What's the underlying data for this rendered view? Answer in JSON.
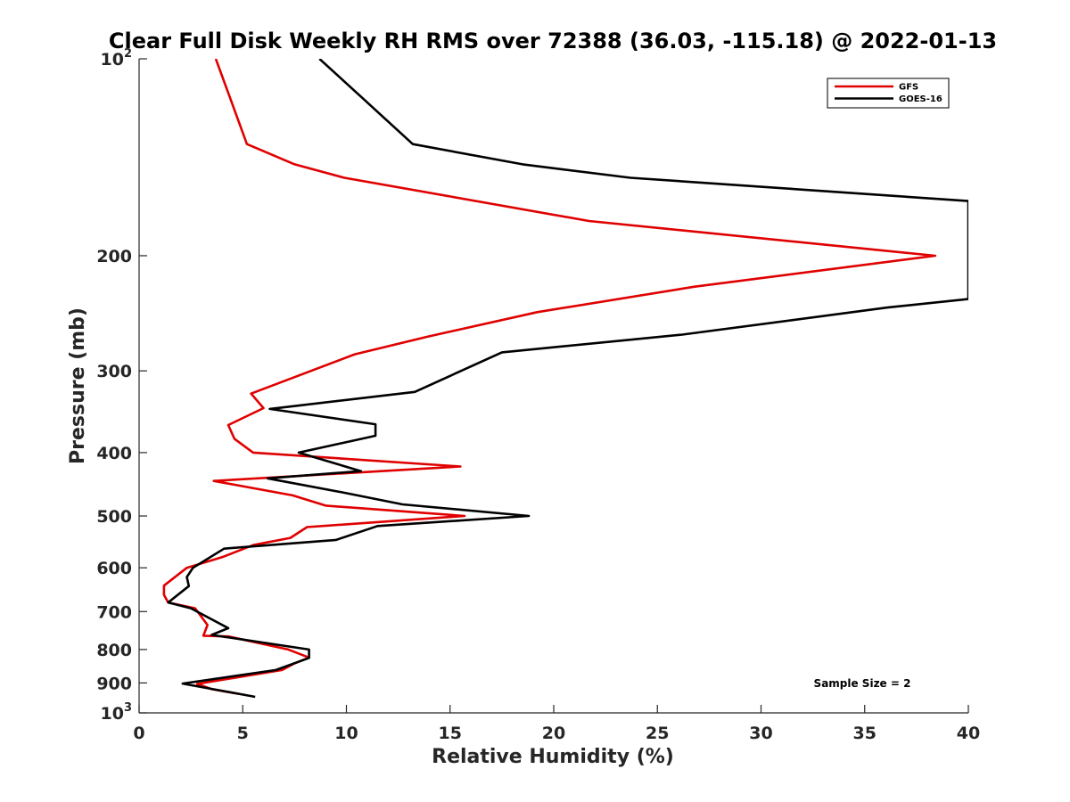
{
  "chart_data": {
    "type": "line",
    "title": "Clear Full Disk Weekly RH RMS over 72388 (36.03, -115.18) @ 2022-01-13",
    "xlabel": "Relative Humidity (%)",
    "ylabel": "Pressure (mb)",
    "xlim": [
      0,
      40
    ],
    "ylim": [
      100,
      1000
    ],
    "y_scale": "log",
    "y_reversed": true,
    "grid": false,
    "legend_position": "top-right",
    "x_ticks": [
      0,
      5,
      10,
      15,
      20,
      25,
      30,
      35,
      40
    ],
    "x_tick_labels": [
      "0",
      "5",
      "10",
      "15",
      "20",
      "25",
      "30",
      "35",
      "40"
    ],
    "y_ticks": [
      100,
      200,
      300,
      400,
      500,
      600,
      700,
      800,
      900,
      1000
    ],
    "y_tick_labels": [
      {
        "base": "10",
        "exp": "2"
      },
      {
        "base": "200",
        "exp": ""
      },
      {
        "base": "300",
        "exp": ""
      },
      {
        "base": "400",
        "exp": ""
      },
      {
        "base": "500",
        "exp": ""
      },
      {
        "base": "600",
        "exp": ""
      },
      {
        "base": "700",
        "exp": ""
      },
      {
        "base": "800",
        "exp": ""
      },
      {
        "base": "900",
        "exp": ""
      },
      {
        "base": "10",
        "exp": "3"
      }
    ],
    "annotation": "Sample Size = 2",
    "series": [
      {
        "name": "GFS",
        "color": "#e00000",
        "points": [
          [
            3.7,
            100
          ],
          [
            4.4,
            115
          ],
          [
            5.2,
            135
          ],
          [
            7.5,
            145
          ],
          [
            9.9,
            152
          ],
          [
            21.7,
            177
          ],
          [
            38.4,
            200
          ],
          [
            26.8,
            223
          ],
          [
            19.2,
            244
          ],
          [
            13.9,
            266
          ],
          [
            10.4,
            283
          ],
          [
            5.4,
            325
          ],
          [
            6.0,
            342
          ],
          [
            4.3,
            363
          ],
          [
            4.6,
            381
          ],
          [
            5.5,
            400
          ],
          [
            15.5,
            420
          ],
          [
            3.6,
            442
          ],
          [
            7.4,
            465
          ],
          [
            9.0,
            482
          ],
          [
            15.7,
            500
          ],
          [
            8.1,
            520
          ],
          [
            7.3,
            540
          ],
          [
            5.5,
            554
          ],
          [
            4.0,
            578
          ],
          [
            2.3,
            600
          ],
          [
            1.2,
            639
          ],
          [
            1.2,
            660
          ],
          [
            1.4,
            678
          ],
          [
            2.7,
            692
          ],
          [
            3.3,
            734
          ],
          [
            3.1,
            762
          ],
          [
            4.3,
            764
          ],
          [
            7.2,
            800
          ],
          [
            8.2,
            823
          ],
          [
            7.5,
            840
          ],
          [
            6.9,
            860
          ],
          [
            2.8,
            903
          ],
          [
            3.5,
            920
          ],
          [
            4.8,
            935
          ]
        ]
      },
      {
        "name": "GOES-16",
        "color": "#000000",
        "points": [
          [
            8.7,
            100
          ],
          [
            10.8,
            115
          ],
          [
            13.2,
            135
          ],
          [
            18.5,
            145
          ],
          [
            23.7,
            152
          ],
          [
            40.0,
            165
          ],
          [
            40.0,
            233
          ],
          [
            36.1,
            240
          ],
          [
            26.2,
            264
          ],
          [
            17.5,
            281
          ],
          [
            13.3,
            323
          ],
          [
            6.3,
            343
          ],
          [
            11.4,
            362
          ],
          [
            11.4,
            377
          ],
          [
            7.7,
            400
          ],
          [
            10.7,
            427
          ],
          [
            6.2,
            438
          ],
          [
            9.8,
            460
          ],
          [
            12.7,
            480
          ],
          [
            18.8,
            500
          ],
          [
            11.5,
            518
          ],
          [
            9.5,
            544
          ],
          [
            4.1,
            561
          ],
          [
            2.6,
            600
          ],
          [
            2.3,
            620
          ],
          [
            2.4,
            640
          ],
          [
            1.4,
            678
          ],
          [
            2.5,
            692
          ],
          [
            4.3,
            742
          ],
          [
            3.5,
            760
          ],
          [
            8.2,
            800
          ],
          [
            8.2,
            824
          ],
          [
            6.6,
            860
          ],
          [
            2.1,
            902
          ],
          [
            5.6,
            945
          ]
        ]
      }
    ]
  }
}
